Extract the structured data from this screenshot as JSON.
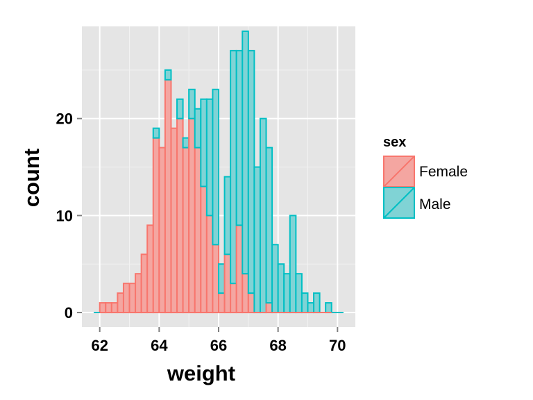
{
  "chart_data": {
    "type": "bar",
    "subtype": "overlaid-stacked-histogram",
    "title": "",
    "xlabel": "weight",
    "ylabel": "count",
    "xlim": [
      61.4,
      70.6
    ],
    "ylim": [
      -1.5,
      29.5
    ],
    "x_ticks": [
      62,
      64,
      66,
      68,
      70
    ],
    "y_ticks": [
      0,
      10,
      20
    ],
    "bin_width": 0.2,
    "bin_starts": [
      61.8,
      62.0,
      62.2,
      62.4,
      62.6,
      62.8,
      63.0,
      63.2,
      63.4,
      63.6,
      63.8,
      64.0,
      64.2,
      64.4,
      64.6,
      64.8,
      65.0,
      65.2,
      65.4,
      65.6,
      65.8,
      66.0,
      66.2,
      66.4,
      66.6,
      66.8,
      67.0,
      67.2,
      67.4,
      67.6,
      67.8,
      68.0,
      68.2,
      68.4,
      68.6,
      68.8,
      69.0,
      69.2,
      69.4,
      69.6,
      69.8,
      70.0
    ],
    "series": [
      {
        "name": "Female",
        "color": "#f8766d",
        "fill": "#f4a6a1",
        "values": [
          0,
          1,
          1,
          1,
          2,
          3,
          3,
          4,
          6,
          9,
          18,
          17,
          24,
          19,
          20,
          17,
          20,
          17,
          13,
          10,
          7,
          2,
          6,
          3,
          9,
          4,
          2,
          0,
          0,
          1,
          0,
          0,
          0,
          0,
          0,
          0,
          0,
          0,
          0,
          0,
          0,
          0
        ]
      },
      {
        "name": "Male",
        "color": "#00bfc4",
        "fill": "#80d3d5",
        "values": [
          0,
          0,
          0,
          0,
          0,
          0,
          0,
          0,
          0,
          0,
          1,
          0,
          1,
          0,
          2,
          1,
          3,
          4,
          9,
          12,
          16,
          3,
          8,
          24,
          18,
          25,
          25,
          15,
          20,
          16,
          7,
          5,
          4,
          10,
          4,
          2,
          1,
          2,
          0,
          1,
          0,
          0
        ]
      }
    ],
    "legend": {
      "title": "sex",
      "entries": [
        "Female",
        "Male"
      ],
      "position": "right"
    },
    "grid": true,
    "panel_background": "#e5e5e5",
    "grid_color": "#ffffff"
  }
}
